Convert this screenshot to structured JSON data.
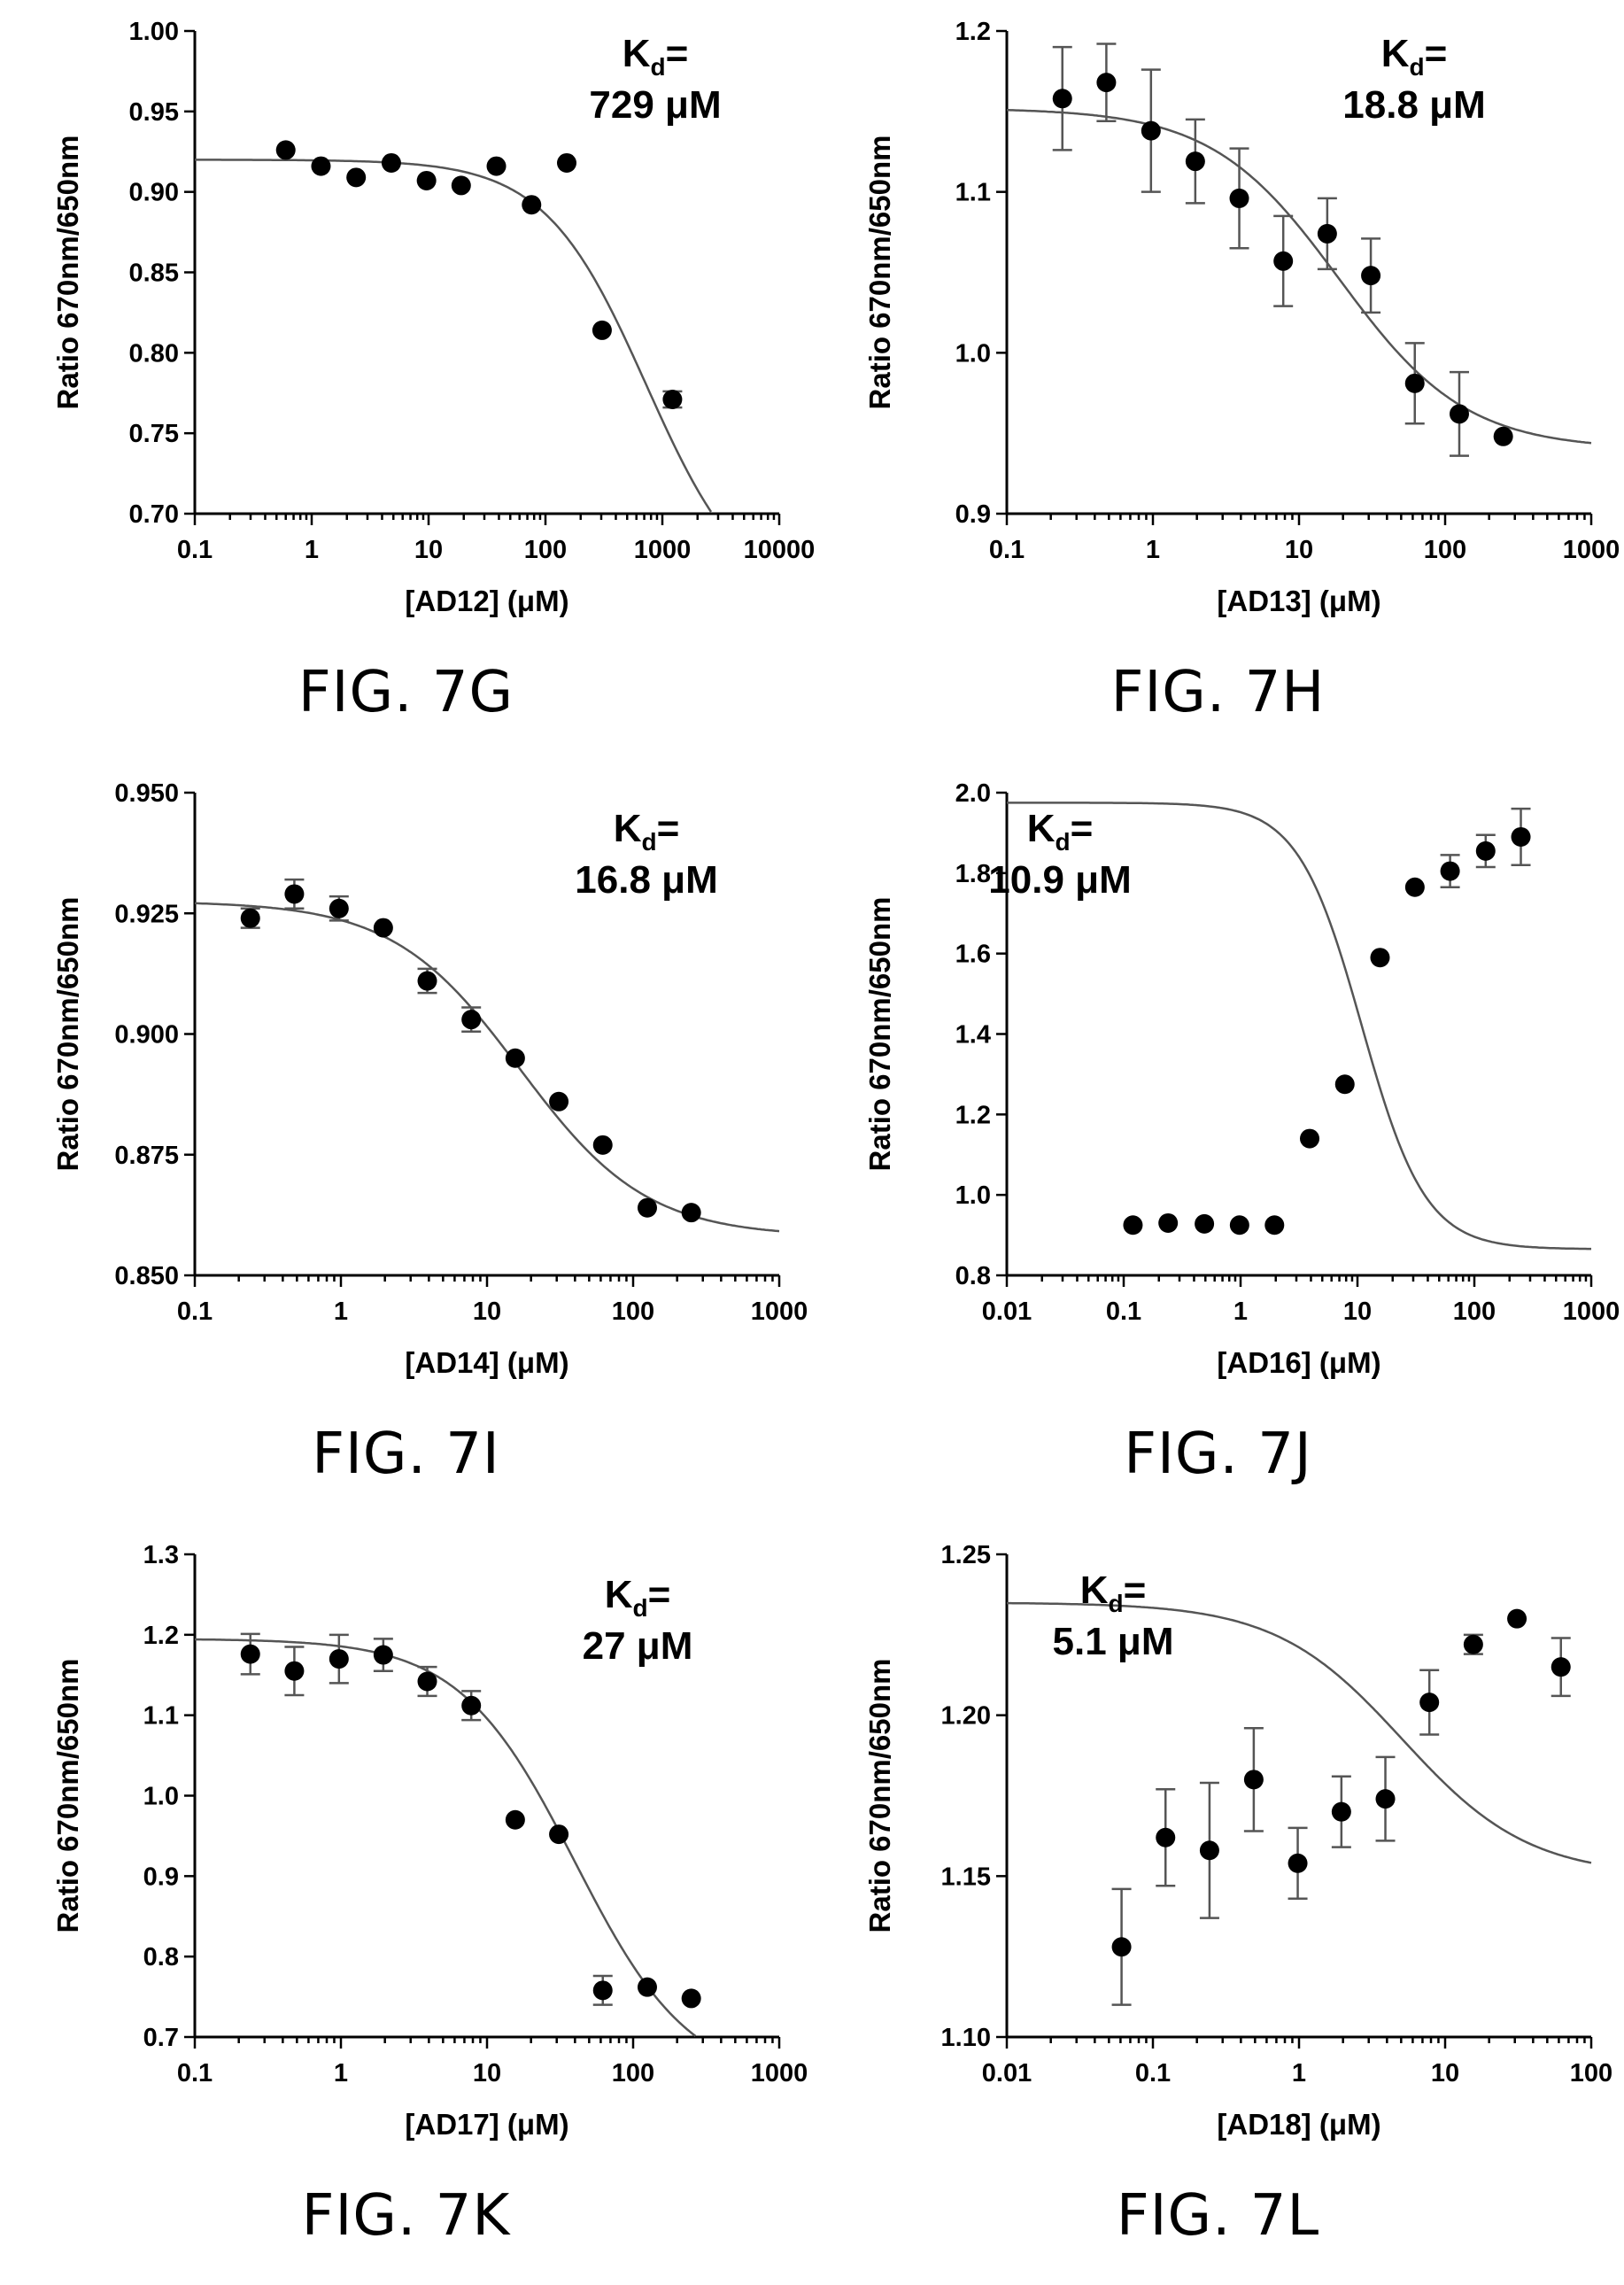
{
  "chart_data": [
    {
      "type": "scatter",
      "caption": "FIG. 7G",
      "xlabel": "[AD12] (μM)",
      "ylabel": "Ratio 670nm/650nm",
      "kd_label": "d",
      "kd_value": "729 μM",
      "xscale": "log",
      "xlim": [
        0.1,
        10000
      ],
      "ylim": [
        0.7,
        1.0
      ],
      "xticks": [
        "0.1",
        "1",
        "10",
        "100",
        "1000",
        "10000"
      ],
      "yticks": [
        "0.70",
        "0.75",
        "0.80",
        "0.85",
        "0.90",
        "0.95",
        "1.00"
      ],
      "fit": {
        "top": 0.92,
        "bottom": 0.64,
        "ec50": 729,
        "hill": 1
      },
      "points": [
        {
          "x": 0.6,
          "y": 0.926,
          "err": 0
        },
        {
          "x": 1.2,
          "y": 0.916,
          "err": 0
        },
        {
          "x": 2.4,
          "y": 0.909,
          "err": 0
        },
        {
          "x": 4.8,
          "y": 0.918,
          "err": 0
        },
        {
          "x": 9.6,
          "y": 0.907,
          "err": 0
        },
        {
          "x": 19,
          "y": 0.904,
          "err": 0
        },
        {
          "x": 38,
          "y": 0.916,
          "err": 0
        },
        {
          "x": 76,
          "y": 0.892,
          "err": 0
        },
        {
          "x": 152,
          "y": 0.918,
          "err": 0
        },
        {
          "x": 305,
          "y": 0.814,
          "err": 0
        },
        {
          "x": 1220,
          "y": 0.771,
          "err": 0.005
        }
      ]
    },
    {
      "type": "scatter",
      "caption": "FIG. 7H",
      "xlabel": "[AD13] (μM)",
      "ylabel": "Ratio 670nm/650nm",
      "kd_label": "d",
      "kd_value": "18.8 μM",
      "xscale": "log",
      "xlim": [
        0.1,
        1000
      ],
      "ylim": [
        0.9,
        1.2
      ],
      "xticks": [
        "0.1",
        "1",
        "10",
        "100",
        "1000"
      ],
      "yticks": [
        "0.9",
        "1.0",
        "1.1",
        "1.2"
      ],
      "fit": {
        "top": 1.152,
        "bottom": 0.94,
        "ec50": 18.8,
        "hill": 1
      },
      "points": [
        {
          "x": 0.24,
          "y": 1.158,
          "err": 0.032
        },
        {
          "x": 0.48,
          "y": 1.168,
          "err": 0.024
        },
        {
          "x": 0.97,
          "y": 1.138,
          "err": 0.038
        },
        {
          "x": 1.95,
          "y": 1.119,
          "err": 0.026
        },
        {
          "x": 3.9,
          "y": 1.096,
          "err": 0.031
        },
        {
          "x": 7.8,
          "y": 1.057,
          "err": 0.028
        },
        {
          "x": 15.6,
          "y": 1.074,
          "err": 0.022
        },
        {
          "x": 31,
          "y": 1.048,
          "err": 0.023
        },
        {
          "x": 62,
          "y": 0.981,
          "err": 0.025
        },
        {
          "x": 125,
          "y": 0.962,
          "err": 0.026
        },
        {
          "x": 250,
          "y": 0.948,
          "err": 0
        }
      ]
    },
    {
      "type": "scatter",
      "caption": "FIG. 7I",
      "xlabel": "[AD14] (μM)",
      "ylabel": "Ratio 670nm/650nm",
      "kd_label": "d",
      "kd_value": "16.8 μM",
      "xscale": "log",
      "xlim": [
        0.1,
        1000
      ],
      "ylim": [
        0.85,
        0.95
      ],
      "xticks": [
        "0.1",
        "1",
        "10",
        "100",
        "1000"
      ],
      "yticks": [
        "0.850",
        "0.875",
        "0.900",
        "0.925",
        "0.950"
      ],
      "fit": {
        "top": 0.9275,
        "bottom": 0.858,
        "ec50": 16.8,
        "hill": 1
      },
      "points": [
        {
          "x": 0.24,
          "y": 0.924,
          "err": 0.002
        },
        {
          "x": 0.48,
          "y": 0.929,
          "err": 0.003
        },
        {
          "x": 0.97,
          "y": 0.926,
          "err": 0.0025
        },
        {
          "x": 1.95,
          "y": 0.922,
          "err": 0
        },
        {
          "x": 3.9,
          "y": 0.911,
          "err": 0.0025
        },
        {
          "x": 7.8,
          "y": 0.903,
          "err": 0.0025
        },
        {
          "x": 15.6,
          "y": 0.895,
          "err": 0
        },
        {
          "x": 31,
          "y": 0.886,
          "err": 0
        },
        {
          "x": 62,
          "y": 0.877,
          "err": 0
        },
        {
          "x": 125,
          "y": 0.864,
          "err": 0
        },
        {
          "x": 250,
          "y": 0.863,
          "err": 0
        }
      ]
    },
    {
      "type": "scatter",
      "caption": "FIG. 7J",
      "xlabel": "[AD16] (μM)",
      "ylabel": "Ratio 670nm/650nm",
      "kd_label": "d",
      "kd_value": "10.9 μM",
      "xscale": "log",
      "xlim": [
        0.01,
        1000
      ],
      "ylim": [
        0.8,
        2.0
      ],
      "xticks": [
        "0.01",
        "0.1",
        "1",
        "10",
        "100",
        "1000"
      ],
      "yticks": [
        "0.8",
        "1.0",
        "1.2",
        "1.4",
        "1.6",
        "1.8",
        "2.0"
      ],
      "fit": {
        "top": 1.975,
        "bottom": 0.865,
        "ec50": 10.9,
        "hill": 1.6
      },
      "points": [
        {
          "x": 0.12,
          "y": 0.925,
          "err": 0
        },
        {
          "x": 0.24,
          "y": 0.93,
          "err": 0
        },
        {
          "x": 0.49,
          "y": 0.928,
          "err": 0
        },
        {
          "x": 0.98,
          "y": 0.925,
          "err": 0
        },
        {
          "x": 1.95,
          "y": 0.925,
          "err": 0
        },
        {
          "x": 3.9,
          "y": 1.14,
          "err": 0
        },
        {
          "x": 7.8,
          "y": 1.275,
          "err": 0
        },
        {
          "x": 15.6,
          "y": 1.59,
          "err": 0
        },
        {
          "x": 31,
          "y": 1.765,
          "err": 0
        },
        {
          "x": 62,
          "y": 1.805,
          "err": 0.04
        },
        {
          "x": 125,
          "y": 1.855,
          "err": 0.04
        },
        {
          "x": 250,
          "y": 1.89,
          "err": 0.07
        }
      ]
    },
    {
      "type": "scatter",
      "caption": "FIG. 7K",
      "xlabel": "[AD17] (μM)",
      "ylabel": "Ratio 670nm/650nm",
      "kd_label": "d",
      "kd_value": "27 μM",
      "xscale": "log",
      "xlim": [
        0.1,
        1000
      ],
      "ylim": [
        0.7,
        1.3
      ],
      "xticks": [
        "0.1",
        "1",
        "10",
        "100",
        "1000"
      ],
      "yticks": [
        "0.7",
        "0.8",
        "0.9",
        "1.0",
        "1.1",
        "1.2",
        "1.3"
      ],
      "fit": {
        "top": 1.195,
        "bottom": 0.64,
        "ec50": 40,
        "hill": 1.1
      },
      "points": [
        {
          "x": 0.24,
          "y": 1.176,
          "err": 0.025
        },
        {
          "x": 0.48,
          "y": 1.155,
          "err": 0.03
        },
        {
          "x": 0.97,
          "y": 1.17,
          "err": 0.03
        },
        {
          "x": 1.95,
          "y": 1.175,
          "err": 0.02
        },
        {
          "x": 3.9,
          "y": 1.142,
          "err": 0.018
        },
        {
          "x": 7.8,
          "y": 1.112,
          "err": 0.018
        },
        {
          "x": 15.6,
          "y": 0.97,
          "err": 0
        },
        {
          "x": 31,
          "y": 0.952,
          "err": 0
        },
        {
          "x": 62,
          "y": 0.758,
          "err": 0.018
        },
        {
          "x": 125,
          "y": 0.762,
          "err": 0
        },
        {
          "x": 250,
          "y": 0.748,
          "err": 0
        }
      ]
    },
    {
      "type": "scatter",
      "caption": "FIG. 7L",
      "xlabel": "[AD18] (μM)",
      "ylabel": "Ratio 670nm/650nm",
      "kd_label": "d",
      "kd_value": "5.1 μM",
      "xscale": "log",
      "xlim": [
        0.01,
        100
      ],
      "ylim": [
        1.1,
        1.25
      ],
      "xticks": [
        "0.01",
        "0.1",
        "1",
        "10",
        "100"
      ],
      "yticks": [
        "1.10",
        "1.15",
        "1.20",
        "1.25"
      ],
      "fit": {
        "top": 1.235,
        "bottom": 1.15,
        "ec50": 5.1,
        "hill": 1
      },
      "points": [
        {
          "x": 0.061,
          "y": 1.128,
          "err": 0.018
        },
        {
          "x": 0.122,
          "y": 1.162,
          "err": 0.015
        },
        {
          "x": 0.244,
          "y": 1.158,
          "err": 0.021
        },
        {
          "x": 0.49,
          "y": 1.18,
          "err": 0.016
        },
        {
          "x": 0.98,
          "y": 1.154,
          "err": 0.011
        },
        {
          "x": 1.95,
          "y": 1.17,
          "err": 0.011
        },
        {
          "x": 3.9,
          "y": 1.174,
          "err": 0.013
        },
        {
          "x": 7.8,
          "y": 1.204,
          "err": 0.01
        },
        {
          "x": 15.6,
          "y": 1.222,
          "err": 0.003
        },
        {
          "x": 31,
          "y": 1.23,
          "err": 0
        },
        {
          "x": 62,
          "y": 1.215,
          "err": 0.009
        }
      ]
    }
  ]
}
